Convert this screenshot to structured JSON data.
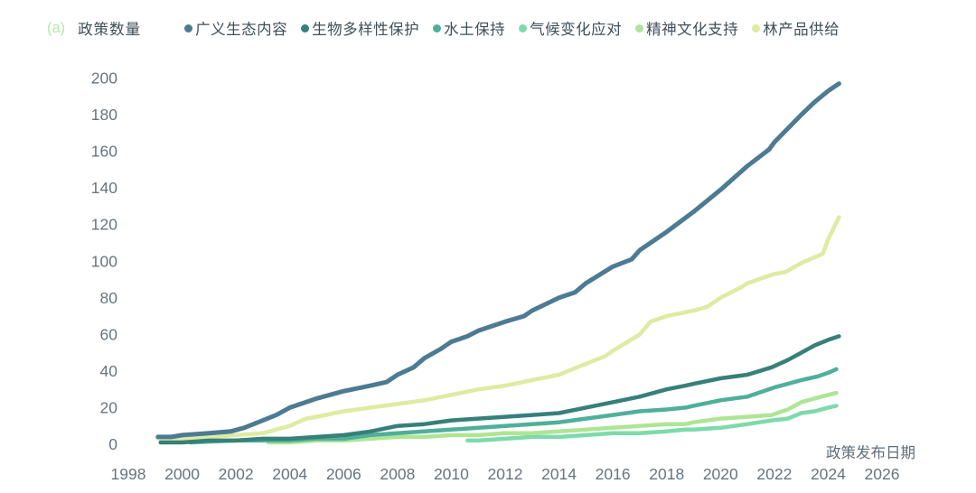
{
  "panel_label": "(a)",
  "chart_data": {
    "type": "line",
    "title": "",
    "ylabel": "政策数量",
    "xlabel": "政策发布日期",
    "x_ticks": [
      1998,
      2000,
      2002,
      2004,
      2006,
      2008,
      2010,
      2012,
      2014,
      2016,
      2018,
      2020,
      2022,
      2024,
      2026
    ],
    "y_ticks": [
      0,
      20,
      40,
      60,
      80,
      100,
      120,
      140,
      160,
      180,
      200
    ],
    "xlim": [
      1997.5,
      2027
    ],
    "ylim": [
      0,
      200
    ],
    "grid": false,
    "legend_position": "top",
    "series": [
      {
        "id": "broad-ecology",
        "name": "广义生态内容",
        "color": "#4c7b92",
        "final_value": 197,
        "points": [
          [
            1999.1,
            4
          ],
          [
            1999.6,
            4
          ],
          [
            2000,
            5
          ],
          [
            2001,
            6
          ],
          [
            2001.8,
            7
          ],
          [
            2002.3,
            9
          ],
          [
            2003,
            13
          ],
          [
            2003.5,
            16
          ],
          [
            2004,
            20
          ],
          [
            2004.6,
            23
          ],
          [
            2005,
            25
          ],
          [
            2006,
            29
          ],
          [
            2007,
            32
          ],
          [
            2007.6,
            34
          ],
          [
            2008,
            38
          ],
          [
            2008.6,
            42
          ],
          [
            2009,
            47
          ],
          [
            2009.6,
            52
          ],
          [
            2010,
            56
          ],
          [
            2010.6,
            59
          ],
          [
            2011,
            62
          ],
          [
            2012,
            67
          ],
          [
            2012.7,
            70
          ],
          [
            2013,
            73
          ],
          [
            2014,
            80
          ],
          [
            2014.6,
            83
          ],
          [
            2015,
            88
          ],
          [
            2016,
            97
          ],
          [
            2016.7,
            101
          ],
          [
            2017,
            106
          ],
          [
            2018,
            116
          ],
          [
            2019,
            127
          ],
          [
            2020,
            139
          ],
          [
            2021,
            152
          ],
          [
            2021.8,
            161
          ],
          [
            2022,
            165
          ],
          [
            2023,
            180
          ],
          [
            2023.5,
            187
          ],
          [
            2024,
            193
          ],
          [
            2024.4,
            197
          ]
        ]
      },
      {
        "id": "biodiversity",
        "name": "生物多样性保护",
        "color": "#37807a",
        "final_value": 59,
        "points": [
          [
            1999.2,
            1
          ],
          [
            2000,
            1
          ],
          [
            2001,
            2
          ],
          [
            2002,
            2
          ],
          [
            2003,
            3
          ],
          [
            2004,
            3
          ],
          [
            2005,
            4
          ],
          [
            2006,
            5
          ],
          [
            2007,
            7
          ],
          [
            2008,
            10
          ],
          [
            2009,
            11
          ],
          [
            2010,
            13
          ],
          [
            2011,
            14
          ],
          [
            2012,
            15
          ],
          [
            2013,
            16
          ],
          [
            2014,
            17
          ],
          [
            2015,
            20
          ],
          [
            2016,
            23
          ],
          [
            2017,
            26
          ],
          [
            2018,
            30
          ],
          [
            2018.7,
            32
          ],
          [
            2019,
            33
          ],
          [
            2020,
            36
          ],
          [
            2021,
            38
          ],
          [
            2021.9,
            42
          ],
          [
            2022.5,
            46
          ],
          [
            2023,
            50
          ],
          [
            2023.5,
            54
          ],
          [
            2024,
            57
          ],
          [
            2024.4,
            59
          ]
        ]
      },
      {
        "id": "soil-water",
        "name": "水土保持",
        "color": "#4fb09a",
        "final_value": 41,
        "points": [
          [
            2000.3,
            1
          ],
          [
            2002,
            2
          ],
          [
            2004,
            2
          ],
          [
            2005,
            3
          ],
          [
            2006,
            3
          ],
          [
            2007,
            5
          ],
          [
            2008,
            6
          ],
          [
            2009,
            7
          ],
          [
            2010,
            8
          ],
          [
            2011,
            9
          ],
          [
            2012,
            10
          ],
          [
            2013,
            11
          ],
          [
            2014,
            12
          ],
          [
            2015,
            14
          ],
          [
            2016,
            16
          ],
          [
            2017,
            18
          ],
          [
            2018,
            19
          ],
          [
            2018.7,
            20
          ],
          [
            2019,
            21
          ],
          [
            2020,
            24
          ],
          [
            2021,
            26
          ],
          [
            2022,
            31
          ],
          [
            2022.5,
            33
          ],
          [
            2023,
            35
          ],
          [
            2023.6,
            37
          ],
          [
            2024,
            39
          ],
          [
            2024.3,
            41
          ]
        ]
      },
      {
        "id": "climate",
        "name": "气候变化应对",
        "color": "#7edaab",
        "final_value": 21,
        "points": [
          [
            2010.6,
            2
          ],
          [
            2011,
            2
          ],
          [
            2012,
            3
          ],
          [
            2013,
            4
          ],
          [
            2014,
            4
          ],
          [
            2015,
            5
          ],
          [
            2016,
            6
          ],
          [
            2017,
            6
          ],
          [
            2018,
            7
          ],
          [
            2018.7,
            8
          ],
          [
            2019,
            8
          ],
          [
            2020,
            9
          ],
          [
            2021,
            11
          ],
          [
            2021.9,
            13
          ],
          [
            2022.5,
            14
          ],
          [
            2023,
            17
          ],
          [
            2023.5,
            18
          ],
          [
            2024,
            20
          ],
          [
            2024.3,
            21
          ]
        ]
      },
      {
        "id": "culture",
        "name": "精神文化支持",
        "color": "#aee595",
        "final_value": 28,
        "points": [
          [
            2003.2,
            1
          ],
          [
            2004,
            1
          ],
          [
            2005,
            2
          ],
          [
            2006,
            2
          ],
          [
            2007,
            3
          ],
          [
            2008,
            4
          ],
          [
            2009,
            4
          ],
          [
            2010,
            5
          ],
          [
            2011,
            5
          ],
          [
            2012,
            6
          ],
          [
            2013,
            6
          ],
          [
            2014,
            7
          ],
          [
            2015,
            8
          ],
          [
            2016,
            9
          ],
          [
            2017,
            10
          ],
          [
            2018,
            11
          ],
          [
            2018.7,
            11
          ],
          [
            2019,
            12
          ],
          [
            2020,
            14
          ],
          [
            2021,
            15
          ],
          [
            2021.9,
            16
          ],
          [
            2022.5,
            19
          ],
          [
            2023,
            23
          ],
          [
            2023.5,
            25
          ],
          [
            2024,
            27
          ],
          [
            2024.3,
            28
          ]
        ]
      },
      {
        "id": "forest-products",
        "name": "林产品供给",
        "color": "#deeba2",
        "final_value": 124,
        "points": [
          [
            1999.1,
            3
          ],
          [
            2000,
            3
          ],
          [
            2001,
            4
          ],
          [
            2002,
            5
          ],
          [
            2003,
            6
          ],
          [
            2004,
            10
          ],
          [
            2004.6,
            14
          ],
          [
            2005,
            15
          ],
          [
            2006,
            18
          ],
          [
            2007,
            20
          ],
          [
            2008,
            22
          ],
          [
            2009,
            24
          ],
          [
            2010,
            27
          ],
          [
            2011,
            30
          ],
          [
            2012,
            32
          ],
          [
            2013,
            35
          ],
          [
            2014,
            38
          ],
          [
            2015,
            44
          ],
          [
            2015.7,
            48
          ],
          [
            2016,
            51
          ],
          [
            2017,
            60
          ],
          [
            2017.4,
            67
          ],
          [
            2018,
            70
          ],
          [
            2019,
            73
          ],
          [
            2019.5,
            75
          ],
          [
            2020,
            80
          ],
          [
            2020.8,
            86
          ],
          [
            2021,
            88
          ],
          [
            2022,
            93
          ],
          [
            2022.4,
            94
          ],
          [
            2023,
            99
          ],
          [
            2023.8,
            104
          ],
          [
            2024,
            112
          ],
          [
            2024.4,
            124
          ]
        ]
      }
    ]
  }
}
